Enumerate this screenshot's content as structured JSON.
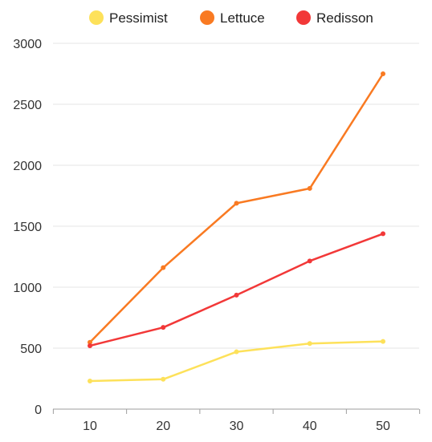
{
  "chart_data": {
    "type": "line",
    "title": "",
    "xlabel": "",
    "ylabel": "",
    "x": [
      10,
      20,
      30,
      40,
      50
    ],
    "ylim": [
      0,
      3000
    ],
    "yticks": [
      0,
      500,
      1000,
      1500,
      2000,
      2500,
      3000
    ],
    "grid": true,
    "legend_position": "top-center",
    "series": [
      {
        "name": "Pessimist",
        "color": "#fde15a",
        "values": [
          230,
          245,
          470,
          538,
          555
        ]
      },
      {
        "name": "Lettuce",
        "color": "#f97a22",
        "values": [
          548,
          1160,
          1688,
          1810,
          2750
        ]
      },
      {
        "name": "Redisson",
        "color": "#f23838",
        "values": [
          520,
          670,
          935,
          1215,
          1438
        ]
      }
    ]
  }
}
